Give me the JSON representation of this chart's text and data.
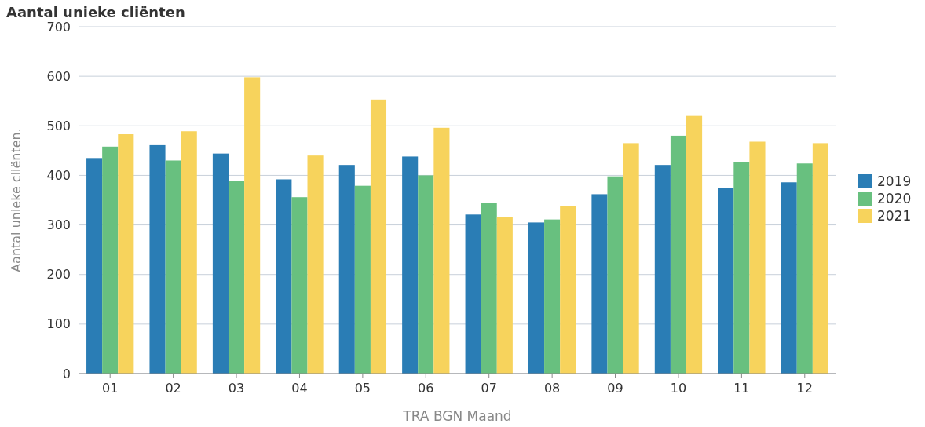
{
  "chart_data": {
    "type": "bar",
    "title": "Aantal unieke cliënten",
    "xlabel": "TRA BGN Maand",
    "ylabel": "Aantal unieke cliënten.",
    "categories": [
      "01",
      "02",
      "03",
      "04",
      "05",
      "06",
      "07",
      "08",
      "09",
      "10",
      "11",
      "12"
    ],
    "series": [
      {
        "name": "2019",
        "color": "#2a7db5",
        "values": [
          435,
          461,
          444,
          392,
          421,
          438,
          321,
          305,
          362,
          421,
          375,
          386
        ]
      },
      {
        "name": "2020",
        "color": "#68c07f",
        "values": [
          458,
          430,
          389,
          356,
          379,
          400,
          344,
          311,
          398,
          480,
          427,
          424
        ]
      },
      {
        "name": "2021",
        "color": "#f7d35c",
        "values": [
          483,
          489,
          598,
          440,
          553,
          496,
          316,
          338,
          465,
          520,
          468,
          465
        ]
      }
    ],
    "ylim": [
      0,
      700
    ],
    "yticks": [
      0,
      100,
      200,
      300,
      400,
      500,
      600,
      700
    ],
    "grid": "y",
    "legend": "right"
  }
}
